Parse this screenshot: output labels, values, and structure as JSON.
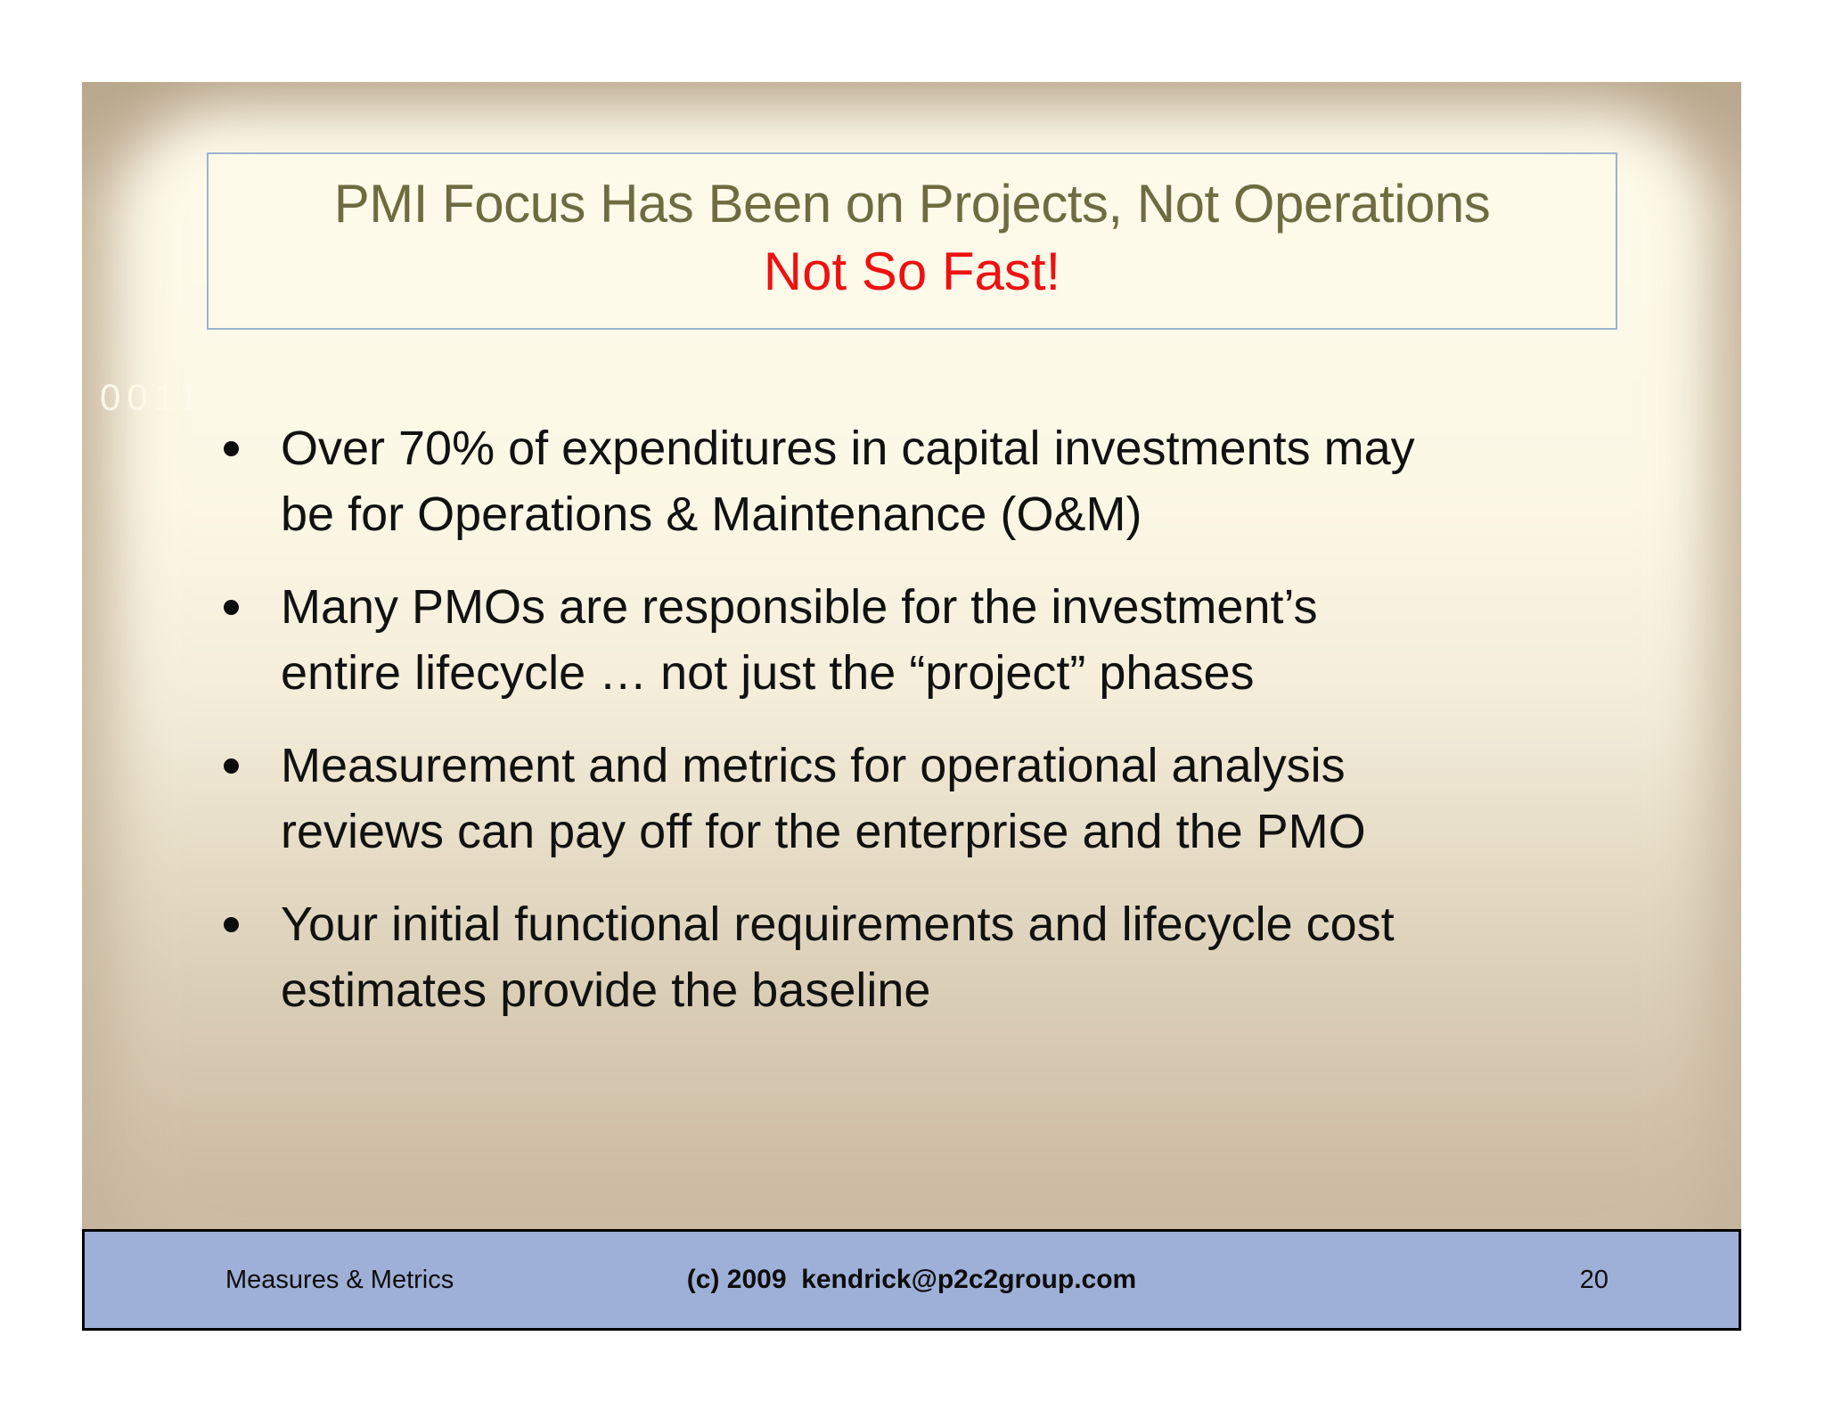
{
  "slide": {
    "title": {
      "line1": "PMI Focus Has Been on Projects, Not Operations",
      "line2": "Not So Fast!"
    },
    "stamp": "0011",
    "bullets": [
      {
        "text": "Over 70% of expenditures in capital investments may\nbe for Operations & Maintenance (O&M)"
      },
      {
        "text": "Many PMOs are responsible for the investment’s\nentire lifecycle … not just the “project” phases"
      },
      {
        "text": "Measurement and metrics for operational analysis\nreviews can pay off for the enterprise and the PMO"
      },
      {
        "text": "Your initial functional requirements and lifecycle cost\nestimates provide the baseline"
      }
    ],
    "footer": {
      "left": "Measures & Metrics",
      "center": "(c) 2009  kendrick@p2c2group.com",
      "page": "20"
    }
  },
  "colors": {
    "title_text": "#6E6C40",
    "alert_text": "#EE1111",
    "body_text": "#111111",
    "footer_bar": "#9FB0D8",
    "title_box_border": "#9CB2D0",
    "slide_edge_tan": "#C6B49B",
    "slide_center_cream": "#FDFAE9",
    "page_background": "#FFFFFF"
  }
}
